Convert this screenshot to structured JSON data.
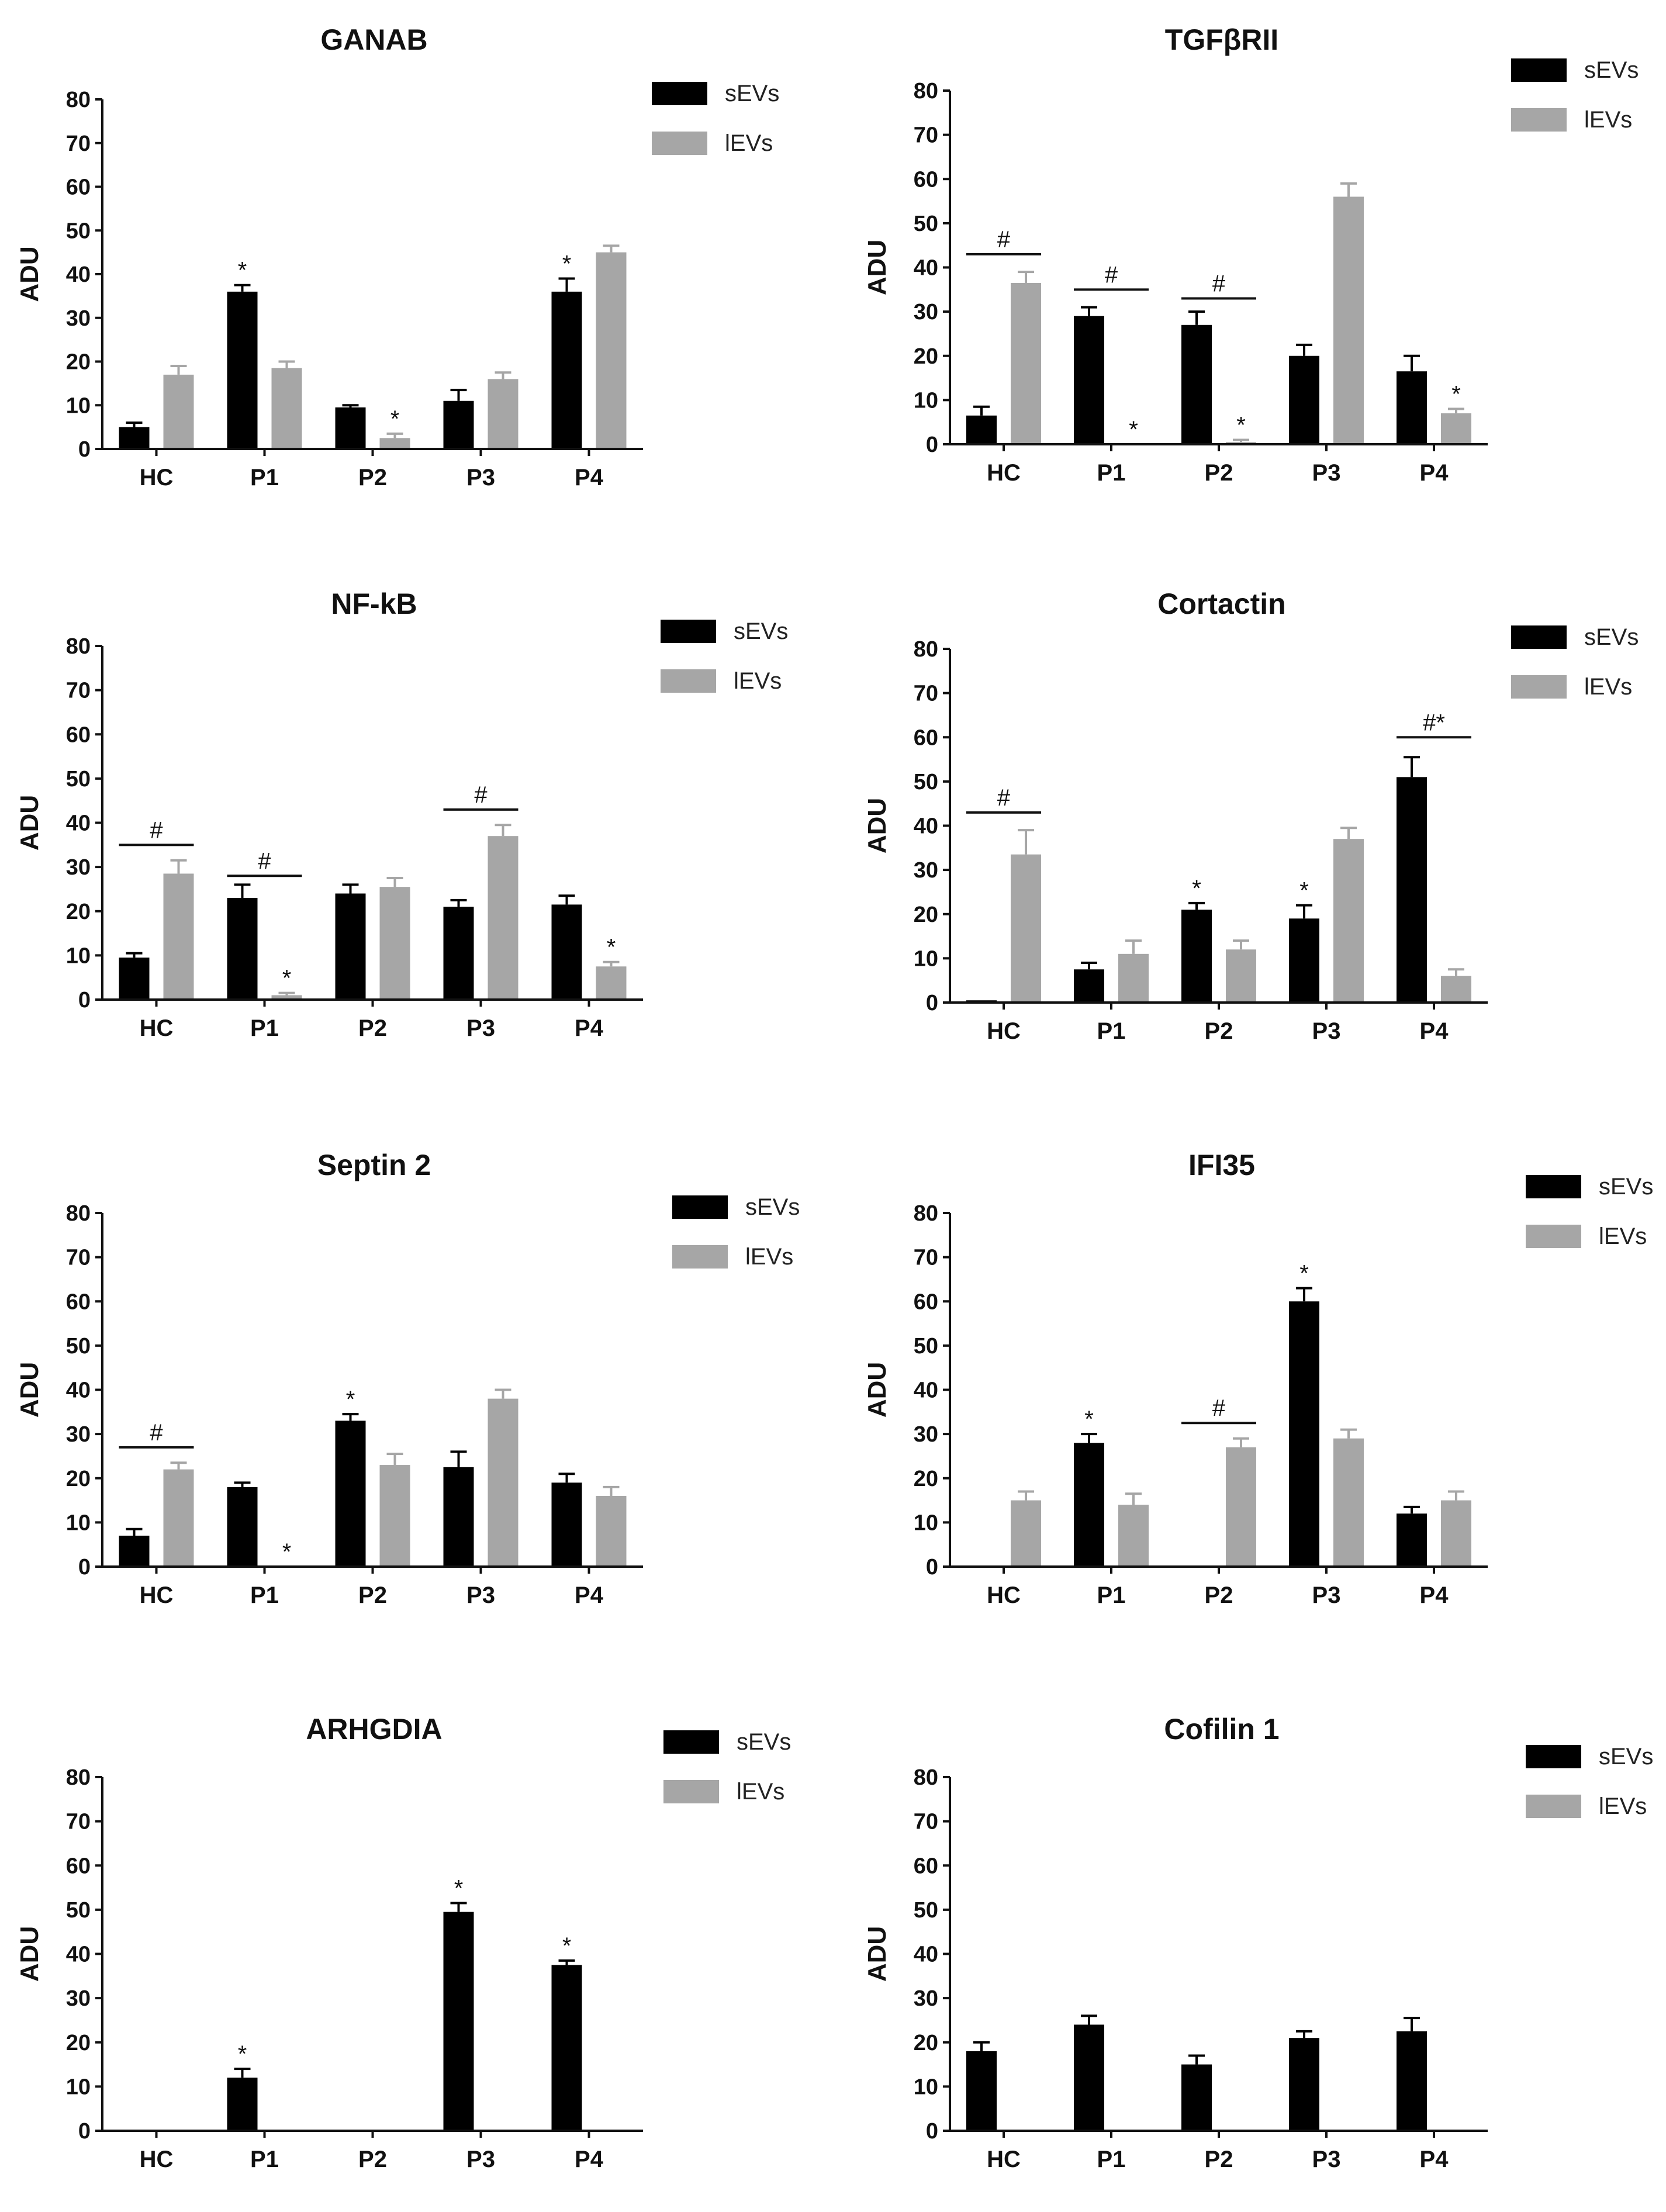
{
  "colors": {
    "sEVs": "#000000",
    "lEVs": "#a6a6a6",
    "axis": "#111111"
  },
  "chart_data": [
    {
      "type": "bar",
      "title": "GANAB",
      "ylabel": "ADU",
      "ylim": [
        0,
        80
      ],
      "yticks": [
        "0",
        "10",
        "20",
        "30",
        "40",
        "50",
        "60",
        "70",
        "80"
      ],
      "categories": [
        "HC",
        "P1",
        "P2",
        "P3",
        "P4"
      ],
      "series": [
        {
          "name": "sEVs",
          "values": [
            5,
            36,
            9.5,
            11,
            36
          ],
          "errors": [
            1,
            1.5,
            0.5,
            2.5,
            3
          ]
        },
        {
          "name": "lEVs",
          "values": [
            17,
            18.5,
            2.5,
            16,
            45
          ],
          "errors": [
            2,
            1.5,
            1,
            1.5,
            1.5
          ]
        }
      ],
      "annotations": [
        {
          "text": "*",
          "category": 1,
          "series": 0
        },
        {
          "text": "*",
          "category": 2,
          "series": 1
        },
        {
          "text": "*",
          "category": 4,
          "series": 0
        }
      ],
      "brackets": []
    },
    {
      "type": "bar",
      "title": "TGFβRII",
      "ylabel": "ADU",
      "ylim": [
        0,
        80
      ],
      "yticks": [
        "0",
        "10",
        "20",
        "30",
        "40",
        "50",
        "60",
        "70",
        "80"
      ],
      "categories": [
        "HC",
        "P1",
        "P2",
        "P3",
        "P4"
      ],
      "series": [
        {
          "name": "sEVs",
          "values": [
            6.5,
            29,
            27,
            20,
            16.5
          ],
          "errors": [
            2,
            2,
            3,
            2.5,
            3.5
          ]
        },
        {
          "name": "lEVs",
          "values": [
            36.5,
            0,
            0.5,
            56,
            7
          ],
          "errors": [
            2.5,
            0,
            0.5,
            3,
            1
          ]
        }
      ],
      "annotations": [
        {
          "text": "*",
          "category": 1,
          "series": 1
        },
        {
          "text": "*",
          "category": 2,
          "series": 1
        },
        {
          "text": "*",
          "category": 4,
          "series": 1
        }
      ],
      "brackets": [
        {
          "text": "#",
          "category": 0,
          "y": 43
        },
        {
          "text": "#",
          "category": 1,
          "y": 35
        },
        {
          "text": "#",
          "category": 2,
          "y": 33
        }
      ]
    },
    {
      "type": "bar",
      "title": "NF-kB",
      "ylabel": "ADU",
      "ylim": [
        0,
        80
      ],
      "yticks": [
        "0",
        "10",
        "20",
        "30",
        "40",
        "50",
        "60",
        "70",
        "80"
      ],
      "categories": [
        "HC",
        "P1",
        "P2",
        "P3",
        "P4"
      ],
      "series": [
        {
          "name": "sEVs",
          "values": [
            9.5,
            23,
            24,
            21,
            21.5
          ],
          "errors": [
            1,
            3,
            2,
            1.5,
            2
          ]
        },
        {
          "name": "lEVs",
          "values": [
            28.5,
            1,
            25.5,
            37,
            7.5
          ],
          "errors": [
            3,
            0.5,
            2,
            2.5,
            1
          ]
        }
      ],
      "annotations": [
        {
          "text": "*",
          "category": 1,
          "series": 1
        },
        {
          "text": "*",
          "category": 4,
          "series": 1
        }
      ],
      "brackets": [
        {
          "text": "#",
          "category": 0,
          "y": 35
        },
        {
          "text": "#",
          "category": 1,
          "y": 28
        },
        {
          "text": "#",
          "category": 3,
          "y": 43
        }
      ]
    },
    {
      "type": "bar",
      "title": "Cortactin",
      "ylabel": "ADU",
      "ylim": [
        0,
        80
      ],
      "yticks": [
        "0",
        "10",
        "20",
        "30",
        "40",
        "50",
        "60",
        "70",
        "80"
      ],
      "categories": [
        "HC",
        "P1",
        "P2",
        "P3",
        "P4"
      ],
      "series": [
        {
          "name": "sEVs",
          "values": [
            0.5,
            7.5,
            21,
            19,
            51
          ],
          "errors": [
            0,
            1.5,
            1.5,
            3,
            4.5
          ]
        },
        {
          "name": "lEVs",
          "values": [
            33.5,
            11,
            12,
            37,
            6
          ],
          "errors": [
            5.5,
            3,
            2,
            2.5,
            1.5
          ]
        }
      ],
      "annotations": [
        {
          "text": "*",
          "category": 2,
          "series": 0
        },
        {
          "text": "*",
          "category": 3,
          "series": 0
        }
      ],
      "brackets": [
        {
          "text": "#",
          "category": 0,
          "y": 43
        },
        {
          "text": "#*",
          "category": 4,
          "y": 60
        }
      ]
    },
    {
      "type": "bar",
      "title": "Septin 2",
      "ylabel": "ADU",
      "ylim": [
        0,
        80
      ],
      "yticks": [
        "0",
        "10",
        "20",
        "30",
        "40",
        "50",
        "60",
        "70",
        "80"
      ],
      "categories": [
        "HC",
        "P1",
        "P2",
        "P3",
        "P4"
      ],
      "series": [
        {
          "name": "sEVs",
          "values": [
            7,
            18,
            33,
            22.5,
            19
          ],
          "errors": [
            1.5,
            1,
            1.5,
            3.5,
            2
          ]
        },
        {
          "name": "lEVs",
          "values": [
            22,
            0,
            23,
            38,
            16
          ],
          "errors": [
            1.5,
            0,
            2.5,
            2,
            2
          ]
        }
      ],
      "annotations": [
        {
          "text": "*",
          "category": 1,
          "series": 1
        },
        {
          "text": "*",
          "category": 2,
          "series": 0
        }
      ],
      "brackets": [
        {
          "text": "#",
          "category": 0,
          "y": 27
        }
      ]
    },
    {
      "type": "bar",
      "title": "IFI35",
      "ylabel": "ADU",
      "ylim": [
        0,
        80
      ],
      "yticks": [
        "0",
        "10",
        "20",
        "30",
        "40",
        "50",
        "60",
        "70",
        "80"
      ],
      "categories": [
        "HC",
        "P1",
        "P2",
        "P3",
        "P4"
      ],
      "series": [
        {
          "name": "sEVs",
          "values": [
            0,
            28,
            0,
            60,
            12
          ],
          "errors": [
            0,
            2,
            0,
            3,
            1.5
          ]
        },
        {
          "name": "lEVs",
          "values": [
            15,
            14,
            27,
            29,
            15
          ],
          "errors": [
            2,
            2.5,
            2,
            2,
            2
          ]
        }
      ],
      "annotations": [
        {
          "text": "*",
          "category": 1,
          "series": 0
        },
        {
          "text": "*",
          "category": 3,
          "series": 0
        }
      ],
      "brackets": [
        {
          "text": "#",
          "category": 2,
          "y": 32.5
        }
      ]
    },
    {
      "type": "bar",
      "title": "ARHGDIA",
      "ylabel": "ADU",
      "ylim": [
        0,
        80
      ],
      "yticks": [
        "0",
        "10",
        "20",
        "30",
        "40",
        "50",
        "60",
        "70",
        "80"
      ],
      "categories": [
        "HC",
        "P1",
        "P2",
        "P3",
        "P4"
      ],
      "series": [
        {
          "name": "sEVs",
          "values": [
            0,
            12,
            0,
            49.5,
            37.5
          ],
          "errors": [
            0,
            2,
            0,
            2,
            1
          ]
        },
        {
          "name": "lEVs",
          "values": [
            0,
            0,
            0,
            0,
            0
          ],
          "errors": [
            0,
            0,
            0,
            0,
            0
          ]
        }
      ],
      "annotations": [
        {
          "text": "*",
          "category": 1,
          "series": 0
        },
        {
          "text": "*",
          "category": 3,
          "series": 0
        },
        {
          "text": "*",
          "category": 4,
          "series": 0
        }
      ],
      "brackets": []
    },
    {
      "type": "bar",
      "title": "Cofilin 1",
      "ylabel": "ADU",
      "ylim": [
        0,
        80
      ],
      "yticks": [
        "0",
        "10",
        "20",
        "30",
        "40",
        "50",
        "60",
        "70",
        "80"
      ],
      "categories": [
        "HC",
        "P1",
        "P2",
        "P3",
        "P4"
      ],
      "series": [
        {
          "name": "sEVs",
          "values": [
            18,
            24,
            15,
            21,
            22.5
          ],
          "errors": [
            2,
            2,
            2,
            1.5,
            3
          ]
        },
        {
          "name": "lEVs",
          "values": [
            0,
            0,
            0,
            0,
            0
          ],
          "errors": [
            0,
            0,
            0,
            0,
            0
          ]
        }
      ],
      "annotations": [],
      "brackets": []
    }
  ]
}
